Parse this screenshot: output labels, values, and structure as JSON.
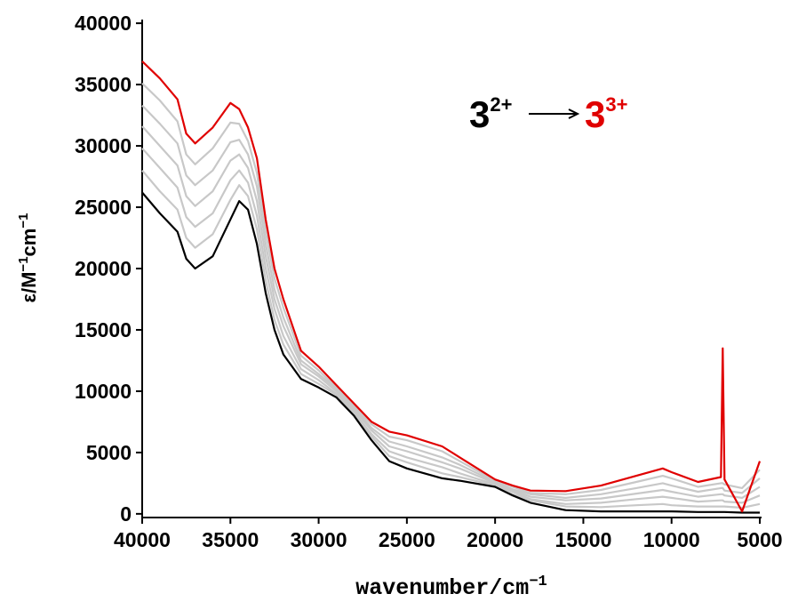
{
  "chart_data": {
    "type": "line",
    "x_label": "wavenumber/cm",
    "x_label_sup": "−1",
    "y_label_parts": [
      "ε/M",
      "−1",
      "cm",
      "−1"
    ],
    "annotation": {
      "from": "3",
      "from_sup": "2+",
      "to": "3",
      "to_sup": "3+",
      "from_color": "#000000",
      "to_color": "#e00000"
    },
    "x": [
      40000,
      39000,
      38000,
      37500,
      37000,
      36000,
      35000,
      34500,
      34000,
      33500,
      33000,
      32500,
      32000,
      31000,
      30000,
      29000,
      28000,
      27000,
      26000,
      25000,
      23000,
      22000,
      20000,
      19000,
      18000,
      16000,
      14000,
      12000,
      10500,
      10000,
      8500,
      7200,
      7100,
      7000,
      6000,
      5000
    ],
    "series": [
      {
        "color": "#c8c8c8",
        "values": [
          28000,
          26300,
          24800,
          22500,
          21700,
          22800,
          25600,
          26800,
          25900,
          23200,
          19000,
          15800,
          13800,
          11400,
          10600,
          9700,
          8200,
          6300,
          4700,
          4200,
          3300,
          3000,
          2300,
          1600,
          1100,
          600,
          550,
          700,
          800,
          700,
          600,
          600,
          600,
          600,
          500,
          800
        ]
      },
      {
        "color": "#c8c8c8",
        "values": [
          29800,
          28200,
          26600,
          24200,
          23400,
          24500,
          27200,
          28000,
          27000,
          24300,
          20000,
          16700,
          14500,
          11800,
          10900,
          9800,
          8300,
          6500,
          5100,
          4600,
          3800,
          3300,
          2400,
          1800,
          1200,
          800,
          900,
          1200,
          1400,
          1300,
          1000,
          1100,
          1100,
          1000,
          900,
          1500
        ]
      },
      {
        "color": "#c8c8c8",
        "values": [
          31600,
          30000,
          28400,
          25900,
          25100,
          26300,
          28800,
          29300,
          28200,
          25500,
          21000,
          17500,
          15300,
          12200,
          11200,
          10000,
          8500,
          6800,
          5500,
          5100,
          4200,
          3700,
          2500,
          1900,
          1400,
          1100,
          1250,
          1650,
          1950,
          1800,
          1400,
          1600,
          1600,
          1500,
          1300,
          2200
        ]
      },
      {
        "color": "#c8c8c8",
        "values": [
          33300,
          31800,
          30200,
          27600,
          26800,
          28000,
          30300,
          30500,
          29300,
          26700,
          22000,
          18300,
          16000,
          12500,
          11400,
          10200,
          8700,
          7000,
          5900,
          5500,
          4600,
          4000,
          2600,
          2000,
          1600,
          1300,
          1600,
          2100,
          2500,
          2300,
          1800,
          2100,
          2100,
          1900,
          1700,
          2900
        ]
      },
      {
        "color": "#c8c8c8",
        "values": [
          35100,
          33700,
          32000,
          29300,
          28500,
          29800,
          31900,
          31800,
          30400,
          27800,
          23000,
          19200,
          16800,
          12900,
          11700,
          10300,
          8800,
          7300,
          6300,
          6000,
          5100,
          4300,
          2700,
          2200,
          1700,
          1600,
          1950,
          2600,
          3100,
          2900,
          2200,
          2500,
          2500,
          2400,
          2100,
          3600
        ]
      },
      {
        "color": "#000000",
        "values": [
          26200,
          24500,
          23000,
          20800,
          20000,
          21000,
          24000,
          25500,
          24800,
          22000,
          18000,
          15000,
          13000,
          11000,
          10300,
          9500,
          8000,
          6000,
          4300,
          3700,
          2900,
          2700,
          2200,
          1500,
          900,
          300,
          200,
          200,
          200,
          200,
          150,
          150,
          150,
          150,
          100,
          100
        ]
      },
      {
        "color": "#e00000",
        "values": [
          36900,
          35500,
          33800,
          31000,
          30200,
          31500,
          33500,
          33000,
          31500,
          29000,
          24000,
          20000,
          17500,
          13300,
          12000,
          10500,
          9000,
          7500,
          6700,
          6400,
          5500,
          4600,
          2800,
          2300,
          1900,
          1850,
          2300,
          3100,
          3700,
          3400,
          2600,
          3000,
          13500,
          2800,
          200,
          4300
        ]
      }
    ],
    "xlim": [
      40000,
      5000
    ],
    "ylim": [
      -300,
      40300
    ],
    "xticks": [
      40000,
      35000,
      30000,
      25000,
      20000,
      15000,
      10000,
      5000
    ],
    "yticks": [
      0,
      5000,
      10000,
      15000,
      20000,
      25000,
      30000,
      35000,
      40000
    ]
  }
}
